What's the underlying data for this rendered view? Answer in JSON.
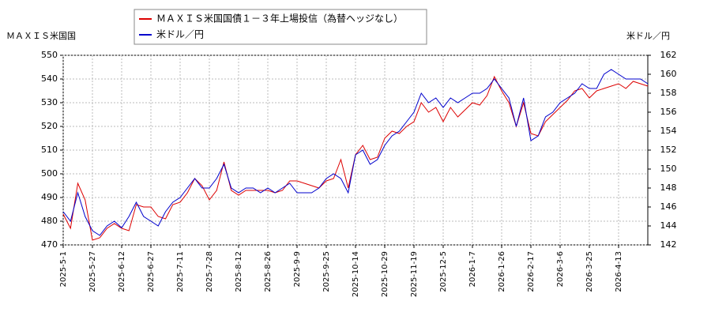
{
  "chart_data": {
    "type": "line",
    "y_label": "ＭＡＸＩＳ米国国",
    "y2_label": "米ドル／円",
    "categories": [
      "2025-5-1",
      null,
      null,
      null,
      "2025-5-27",
      null,
      null,
      null,
      "2025-6-12",
      null,
      null,
      null,
      "2025-6-27",
      null,
      null,
      null,
      "2025-7-11",
      null,
      null,
      null,
      "2025-7-28",
      null,
      null,
      null,
      "2025-8-12",
      null,
      null,
      null,
      "2025-8-26",
      null,
      null,
      null,
      "2025-9-9",
      null,
      null,
      null,
      "2025-9-25",
      null,
      null,
      null,
      "2025-10-14",
      null,
      null,
      null,
      "2025-10-29",
      null,
      null,
      null,
      "2025-11-19",
      null,
      null,
      null,
      "2025-12-5",
      null,
      null,
      null,
      "2026-1-7",
      null,
      null,
      null,
      "2026-1-26",
      null,
      null,
      null,
      "2026-2-17",
      null,
      null,
      null,
      "2026-3-6",
      null,
      null,
      null,
      "2026-3-25",
      null,
      null,
      null,
      "2026-4-13",
      null,
      null,
      null,
      null
    ],
    "series": [
      {
        "name": "ＭＡＸＩＳ米国国債１－３年上場投信（為替ヘッジなし）",
        "color": "#dd0000",
        "values": [
          483,
          477,
          496,
          489,
          472,
          473,
          477,
          479,
          477,
          476,
          487,
          486,
          486,
          482,
          481,
          487,
          488,
          492,
          498,
          495,
          489,
          493,
          505,
          493,
          491,
          493,
          493,
          493,
          493,
          492,
          493,
          497,
          497,
          496,
          495,
          494,
          497,
          498,
          506,
          494,
          508,
          512,
          506,
          507,
          515,
          518,
          517,
          520,
          522,
          530,
          526,
          528,
          522,
          528,
          524,
          527,
          530,
          529,
          533,
          541,
          535,
          530,
          520,
          530,
          517,
          516,
          522,
          525,
          528,
          531,
          535,
          536,
          532,
          535,
          536,
          537,
          538,
          536,
          539,
          538,
          537
        ]
      },
      {
        "name": "米ドル／円",
        "color": "#0000cc",
        "axis": "y2",
        "values": [
          145.5,
          144.5,
          147.5,
          145,
          143.5,
          143,
          144,
          144.5,
          143.8,
          145,
          146.5,
          145,
          144.5,
          144,
          145.5,
          146.5,
          147,
          148,
          149,
          148,
          148,
          149,
          150.5,
          148,
          147.5,
          148,
          148,
          147.5,
          148,
          147.5,
          148,
          148.5,
          147.5,
          147.5,
          147.5,
          148,
          149,
          149.5,
          149,
          147.5,
          151.5,
          152,
          150.5,
          151,
          152.5,
          153.5,
          154,
          155,
          156,
          158,
          157,
          157.5,
          156.5,
          157.5,
          157,
          157.5,
          158,
          158,
          158.5,
          159.5,
          158.5,
          157.5,
          154.5,
          157.5,
          153,
          153.5,
          155.5,
          156,
          157,
          157.5,
          158,
          159,
          158.5,
          158.5,
          160,
          160.5,
          160,
          159.5,
          159.5,
          159.5,
          159
        ]
      }
    ],
    "ylim": [
      470,
      550
    ],
    "yticks": [
      470,
      480,
      490,
      500,
      510,
      520,
      530,
      540,
      550
    ],
    "y2lim": [
      142,
      162
    ],
    "y2ticks": [
      142,
      144,
      146,
      148,
      150,
      152,
      154,
      156,
      158,
      160,
      162
    ],
    "grid": true
  }
}
